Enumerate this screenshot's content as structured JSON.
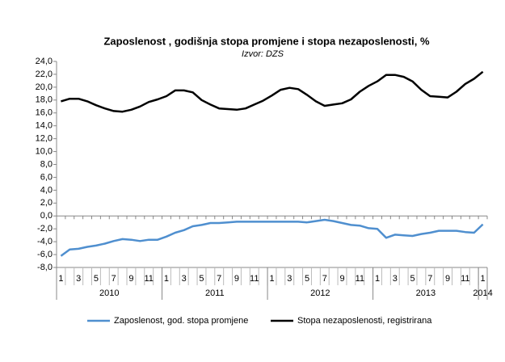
{
  "chart_data": {
    "type": "line",
    "title": "Zaposlenost , godišnja stopa promjene i stopa nezaposlenosti, %",
    "subtitle": "Izvor: DZS",
    "categories": [
      "1",
      null,
      "3",
      null,
      "5",
      null,
      "7",
      null,
      "9",
      null,
      "11",
      null,
      "1",
      null,
      "3",
      null,
      "5",
      null,
      "7",
      null,
      "9",
      null,
      "11",
      null,
      "1",
      null,
      "3",
      null,
      "5",
      null,
      "7",
      null,
      "9",
      null,
      "11",
      null,
      "1",
      null,
      "3",
      null,
      "5",
      null,
      "7",
      null,
      "9",
      null,
      "11",
      null,
      "1"
    ],
    "years": [
      "2010",
      "2011",
      "2012",
      "2013",
      "2014"
    ],
    "series": [
      {
        "name": "Zaposlenost, god. stopa promjene",
        "color": "#4f8fcf",
        "values": [
          -6.2,
          -5.2,
          -5.1,
          -4.8,
          -4.6,
          -4.3,
          -3.9,
          -3.6,
          -3.7,
          -3.9,
          -3.7,
          -3.7,
          -3.2,
          -2.6,
          -2.2,
          -1.6,
          -1.4,
          -1.1,
          -1.1,
          -1.0,
          -0.9,
          -0.9,
          -0.9,
          -0.9,
          -0.9,
          -0.9,
          -0.9,
          -0.9,
          -1.0,
          -0.8,
          -0.6,
          -0.8,
          -1.1,
          -1.4,
          -1.5,
          -1.9,
          -2.0,
          -3.4,
          -2.9,
          -3.0,
          -3.1,
          -2.8,
          -2.6,
          -2.3,
          -2.3,
          -2.3,
          -2.5,
          -2.6,
          -1.3
        ]
      },
      {
        "name": "Stopa nezaposlenosti, registrirana",
        "color": "#000000",
        "values": [
          17.8,
          18.2,
          18.2,
          17.8,
          17.2,
          16.7,
          16.3,
          16.2,
          16.5,
          17.0,
          17.7,
          18.1,
          18.6,
          19.5,
          19.5,
          19.2,
          18.0,
          17.3,
          16.7,
          16.6,
          16.5,
          16.7,
          17.3,
          17.9,
          18.7,
          19.6,
          19.9,
          19.7,
          18.8,
          17.8,
          17.1,
          17.3,
          17.5,
          18.1,
          19.3,
          20.2,
          20.9,
          21.9,
          21.9,
          21.6,
          20.9,
          19.6,
          18.6,
          18.5,
          18.4,
          19.3,
          20.5,
          21.3,
          22.4
        ]
      }
    ],
    "ylim": [
      -8,
      24
    ],
    "yticks": [
      {
        "value": -8,
        "label": "-8,0"
      },
      {
        "value": -6,
        "label": "-6,0"
      },
      {
        "value": -4,
        "label": "-4,0"
      },
      {
        "value": -2,
        "label": "-2,0"
      },
      {
        "value": 0,
        "label": "0,0"
      },
      {
        "value": 2,
        "label": "2,0"
      },
      {
        "value": 4,
        "label": "4,0"
      },
      {
        "value": 6,
        "label": "6,0"
      },
      {
        "value": 8,
        "label": "8,0"
      },
      {
        "value": 10,
        "label": "10,0"
      },
      {
        "value": 12,
        "label": "12,0"
      },
      {
        "value": 14,
        "label": "14,0"
      },
      {
        "value": 16,
        "label": "16,0"
      },
      {
        "value": 18,
        "label": "18,0"
      },
      {
        "value": 20,
        "label": "20,0"
      },
      {
        "value": 22,
        "label": "22,0"
      },
      {
        "value": 24,
        "label": "24,0"
      }
    ],
    "legend": "bottom"
  }
}
